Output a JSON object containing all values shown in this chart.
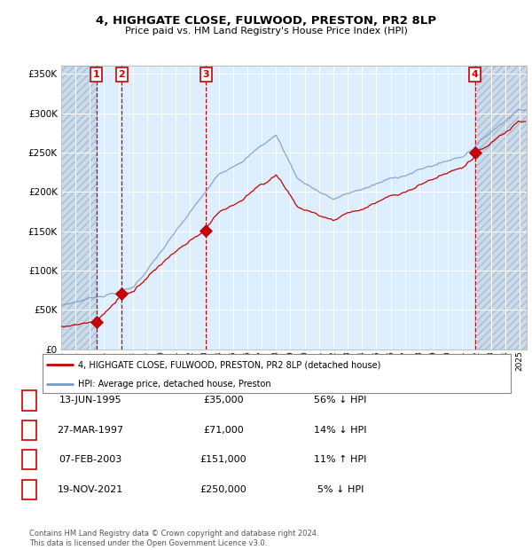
{
  "title1": "4, HIGHGATE CLOSE, FULWOOD, PRESTON, PR2 8LP",
  "title2": "Price paid vs. HM Land Registry's House Price Index (HPI)",
  "property_label": "4, HIGHGATE CLOSE, FULWOOD, PRESTON, PR2 8LP (detached house)",
  "hpi_label": "HPI: Average price, detached house, Preston",
  "sales": [
    {
      "num": 1,
      "date_label": "13-JUN-1995",
      "date_x": 1995.45,
      "price": 35000,
      "pct": "56%",
      "dir": "↓"
    },
    {
      "num": 2,
      "date_label": "27-MAR-1997",
      "date_x": 1997.23,
      "price": 71000,
      "pct": "14%",
      "dir": "↓"
    },
    {
      "num": 3,
      "date_label": "07-FEB-2003",
      "date_x": 2003.1,
      "price": 151000,
      "pct": "11%",
      "dir": "↑"
    },
    {
      "num": 4,
      "date_label": "19-NOV-2021",
      "date_x": 2021.88,
      "price": 250000,
      "pct": "5%",
      "dir": "↓"
    }
  ],
  "ylim": [
    0,
    360000
  ],
  "xlim": [
    1993.0,
    2025.5
  ],
  "yticks": [
    0,
    50000,
    100000,
    150000,
    200000,
    250000,
    300000,
    350000
  ],
  "xticks": [
    1993,
    1994,
    1995,
    1996,
    1997,
    1998,
    1999,
    2000,
    2001,
    2002,
    2003,
    2004,
    2005,
    2006,
    2007,
    2008,
    2009,
    2010,
    2011,
    2012,
    2013,
    2014,
    2015,
    2016,
    2017,
    2018,
    2019,
    2020,
    2021,
    2022,
    2023,
    2024,
    2025
  ],
  "fig_bg": "#ffffff",
  "plot_bg": "#ddeeff",
  "hatch_color": "#b8c8dd",
  "red_color": "#cc0000",
  "blue_color": "#7799cc",
  "footnote": "Contains HM Land Registry data © Crown copyright and database right 2024.\nThis data is licensed under the Open Government Licence v3.0."
}
